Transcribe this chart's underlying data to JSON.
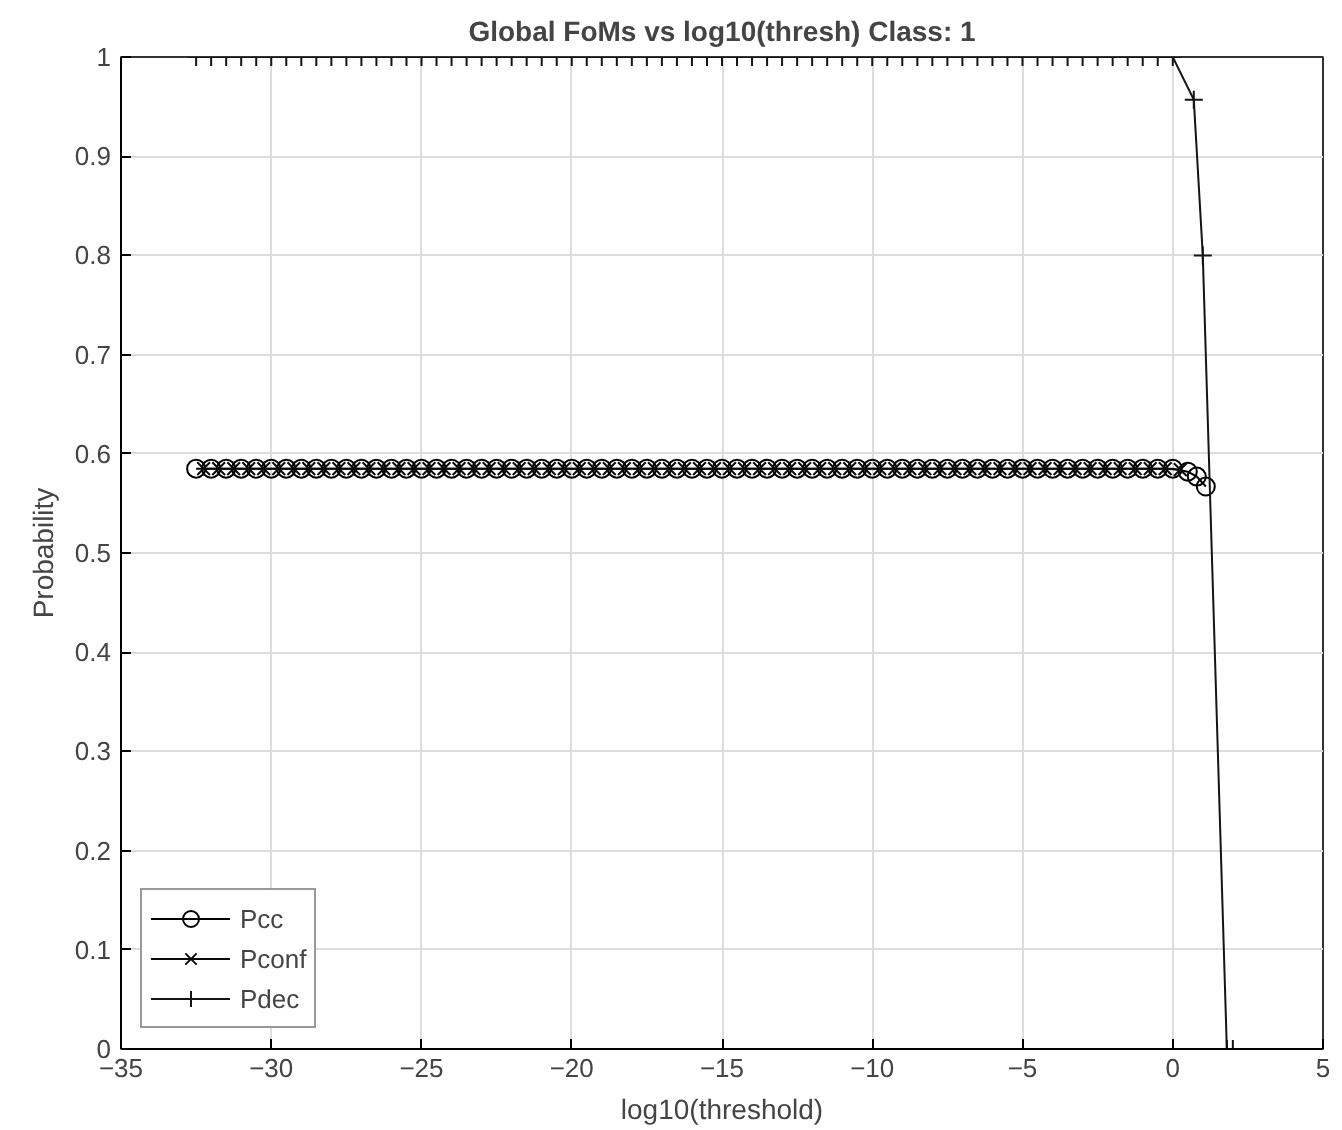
{
  "chart_data": {
    "type": "line",
    "title": "Global FoMs vs log10(thresh) Class: 1",
    "xlabel": "log10(threshold)",
    "ylabel": "Probability",
    "xlim": [
      -35,
      5
    ],
    "xticks": [
      -35,
      -30,
      -25,
      -20,
      -15,
      -10,
      -5,
      0,
      5
    ],
    "ylim": [
      0,
      1
    ],
    "yticks": [
      0,
      0.1,
      0.2,
      0.3,
      0.4,
      0.5,
      0.6,
      0.7,
      0.8,
      0.9,
      1
    ],
    "grid": true,
    "legend": "bottom left",
    "line_style": "solid",
    "series": [
      {
        "name": "Pcc",
        "color": "#000000",
        "marker": "circle",
        "x": [
          -32.5,
          -32,
          -31.5,
          -31,
          -30.5,
          -30,
          -29.5,
          -29,
          -28.5,
          -28,
          -27.5,
          -27,
          -26.5,
          -26,
          -25.5,
          -25,
          -24.5,
          -24,
          -23.5,
          -23,
          -22.5,
          -22,
          -21.5,
          -21,
          -20.5,
          -20,
          -19.5,
          -19,
          -18.5,
          -18,
          -17.5,
          -17,
          -16.5,
          -16,
          -15.5,
          -15,
          -14.5,
          -14,
          -13.5,
          -13,
          -12.5,
          -12,
          -11.5,
          -11,
          -10.5,
          -10,
          -9.5,
          -9,
          -8.5,
          -8,
          -7.5,
          -7,
          -6.5,
          -6,
          -5.5,
          -5,
          -4.5,
          -4,
          -3.5,
          -3,
          -2.5,
          -2,
          -1.5,
          -1,
          -0.5,
          0,
          0.5,
          0.8,
          1.1
        ],
        "values": [
          0.585,
          0.585,
          0.585,
          0.585,
          0.585,
          0.585,
          0.585,
          0.585,
          0.585,
          0.585,
          0.585,
          0.585,
          0.585,
          0.585,
          0.585,
          0.585,
          0.585,
          0.585,
          0.585,
          0.585,
          0.585,
          0.585,
          0.585,
          0.585,
          0.585,
          0.585,
          0.585,
          0.585,
          0.585,
          0.585,
          0.585,
          0.585,
          0.585,
          0.585,
          0.585,
          0.585,
          0.585,
          0.585,
          0.585,
          0.585,
          0.585,
          0.585,
          0.585,
          0.585,
          0.585,
          0.585,
          0.585,
          0.585,
          0.585,
          0.585,
          0.585,
          0.585,
          0.585,
          0.585,
          0.585,
          0.585,
          0.585,
          0.585,
          0.585,
          0.585,
          0.585,
          0.585,
          0.585,
          0.585,
          0.585,
          0.585,
          0.582,
          0.577,
          0.567
        ]
      },
      {
        "name": "Pconf",
        "color": "#0a0a0a",
        "marker": "cross",
        "x": [
          -32.25,
          -31.75,
          -31.25,
          -30.75,
          -30.25,
          -29.75,
          -29.25,
          -28.75,
          -28.25,
          -27.75,
          -27.25,
          -26.75,
          -26.25,
          -25.75,
          -25.25,
          -24.75,
          -24.25,
          -23.75,
          -23.25,
          -22.75,
          -22.25,
          -21.75,
          -21.25,
          -20.75,
          -20.25,
          -19.75,
          -19.25,
          -18.75,
          -18.25,
          -17.75,
          -17.25,
          -16.75,
          -16.25,
          -15.75,
          -15.25,
          -14.75,
          -14.25,
          -13.75,
          -13.25,
          -12.75,
          -12.25,
          -11.75,
          -11.25,
          -10.75,
          -10.25,
          -9.75,
          -9.25,
          -8.75,
          -8.25,
          -7.75,
          -7.25,
          -6.75,
          -6.25,
          -5.75,
          -5.25,
          -4.75,
          -4.25,
          -3.75,
          -3.25,
          -2.75,
          -2.25,
          -1.75,
          -1.25,
          -0.75,
          -0.25,
          0.25
        ],
        "values": [
          0.585,
          0.585,
          0.585,
          0.585,
          0.585,
          0.585,
          0.585,
          0.585,
          0.585,
          0.585,
          0.585,
          0.585,
          0.585,
          0.585,
          0.585,
          0.585,
          0.585,
          0.585,
          0.585,
          0.585,
          0.585,
          0.585,
          0.585,
          0.585,
          0.585,
          0.585,
          0.585,
          0.585,
          0.585,
          0.585,
          0.585,
          0.585,
          0.585,
          0.585,
          0.585,
          0.585,
          0.585,
          0.585,
          0.585,
          0.585,
          0.585,
          0.585,
          0.585,
          0.585,
          0.585,
          0.585,
          0.585,
          0.585,
          0.585,
          0.585,
          0.585,
          0.585,
          0.585,
          0.585,
          0.585,
          0.585,
          0.585,
          0.585,
          0.585,
          0.585,
          0.585,
          0.585,
          0.585,
          0.585,
          0.585,
          0.584
        ]
      },
      {
        "name": "Pdec",
        "color": "#141414",
        "marker": "plus",
        "x": [
          -32.5,
          -32,
          -31.5,
          -31,
          -30.5,
          -30,
          -29.5,
          -29,
          -28.5,
          -28,
          -27.5,
          -27,
          -26.5,
          -26,
          -25.5,
          -25,
          -24.5,
          -24,
          -23.5,
          -23,
          -22.5,
          -22,
          -21.5,
          -21,
          -20.5,
          -20,
          -19.5,
          -19,
          -18.5,
          -18,
          -17.5,
          -17,
          -16.5,
          -16,
          -15.5,
          -15,
          -14.5,
          -14,
          -13.5,
          -13,
          -12.5,
          -12,
          -11.5,
          -11,
          -10.5,
          -10,
          -9.5,
          -9,
          -8.5,
          -8,
          -7.5,
          -7,
          -6.5,
          -6,
          -5.5,
          -5,
          -4.5,
          -4,
          -3.5,
          -3,
          -2.5,
          -2,
          -1.5,
          -1,
          -0.5,
          0,
          0.7,
          1.0,
          1.8,
          2.0
        ],
        "values": [
          1,
          1,
          1,
          1,
          1,
          1,
          1,
          1,
          1,
          1,
          1,
          1,
          1,
          1,
          1,
          1,
          1,
          1,
          1,
          1,
          1,
          1,
          1,
          1,
          1,
          1,
          1,
          1,
          1,
          1,
          1,
          1,
          1,
          1,
          1,
          1,
          1,
          1,
          1,
          1,
          1,
          1,
          1,
          1,
          1,
          1,
          1,
          1,
          1,
          1,
          1,
          1,
          1,
          1,
          1,
          1,
          1,
          1,
          1,
          1,
          1,
          1,
          1,
          1,
          1,
          1,
          0.957,
          0.8,
          0,
          0
        ]
      }
    ]
  }
}
